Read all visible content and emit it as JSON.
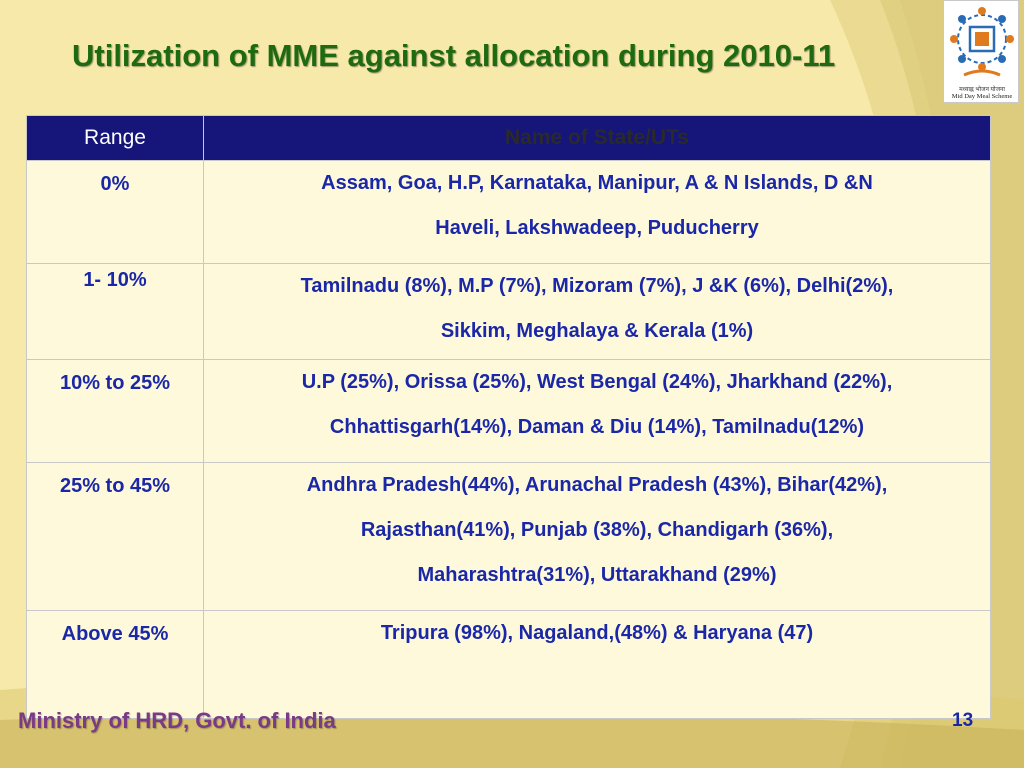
{
  "slide": {
    "title": "Utilization of MME against allocation during 2010-11",
    "footer": "Ministry of HRD, Govt. of India",
    "page_number": "13"
  },
  "logo": {
    "hindi_text": "मध्याह्न भोजन योजना",
    "english_text": "Mid Day Meal Scheme"
  },
  "table": {
    "headers": [
      "Range",
      "Name of State/UTs"
    ],
    "rows": [
      {
        "range": "0%",
        "lines": [
          "Assam, Goa, H.P, Karnataka, Manipur, A & N Islands, D &N",
          "Haveli, Lakshwadeep, Puducherry"
        ]
      },
      {
        "range": "1- 10%",
        "lines": [
          "Tamilnadu (8%), M.P (7%), Mizoram (7%), J &K (6%), Delhi(2%),",
          "Sikkim, Meghalaya  & Kerala (1%)"
        ]
      },
      {
        "range": "10% to 25%",
        "lines": [
          "U.P (25%), Orissa (25%), West Bengal (24%), Jharkhand (22%),",
          "Chhattisgarh(14%), Daman & Diu (14%), Tamilnadu(12%)"
        ]
      },
      {
        "range": "25% to 45%",
        "lines": [
          "Andhra Pradesh(44%), Arunachal Pradesh (43%), Bihar(42%),",
          "Rajasthan(41%), Punjab (38%), Chandigarh (36%),",
          "Maharashtra(31%), Uttarakhand (29%)"
        ]
      },
      {
        "range": "Above 45%",
        "lines": [
          "Tripura (98%), Nagaland,(48%)  & Haryana (47)"
        ]
      }
    ]
  },
  "colors": {
    "background": "#f6e7a6",
    "title": "#1d6a10",
    "header_bg": "#15157a",
    "cell_text": "#1a28a8",
    "footer": "#7a3a86"
  }
}
